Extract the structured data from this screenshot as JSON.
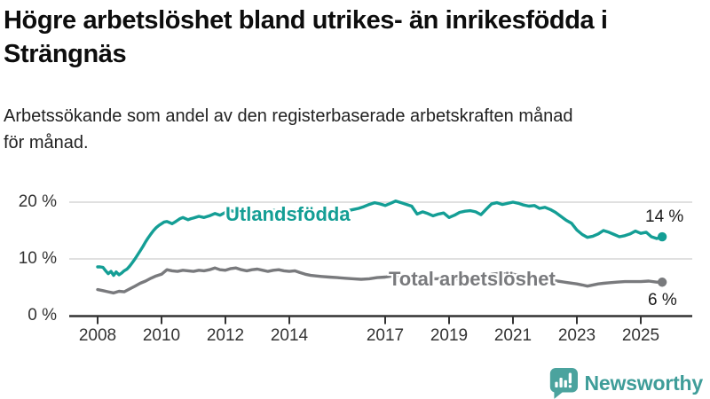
{
  "header": {
    "title": "Högre arbetslöshet bland utrikes- än inrikesfödda i Strängnäs",
    "subtitle": "Arbetssökande som andel av den registerbaserade arbetskraften månad för månad."
  },
  "chart_data": {
    "type": "line",
    "x_axis": {
      "unit": "year",
      "min": 2007.1,
      "max": 2026.6,
      "ticks": [
        2008,
        2010,
        2012,
        2014,
        2017,
        2019,
        2021,
        2023,
        2025
      ]
    },
    "y_axis": {
      "min": 0,
      "max": 22,
      "gridlines": [
        10,
        20
      ],
      "ticks": [
        {
          "value": 0,
          "label": "0 %"
        },
        {
          "value": 10,
          "label": "10 %"
        },
        {
          "value": 20,
          "label": "20 %"
        }
      ]
    },
    "legend_position": "inline-labels-on-lines",
    "series": [
      {
        "name": "Utlandsfödda",
        "color": "#149E95",
        "end_label": "14 %",
        "end_value": 14,
        "points": [
          [
            2008.0,
            8.6
          ],
          [
            2008.08,
            8.6
          ],
          [
            2008.17,
            8.5
          ],
          [
            2008.25,
            7.9
          ],
          [
            2008.33,
            7.4
          ],
          [
            2008.42,
            7.8
          ],
          [
            2008.5,
            7.1
          ],
          [
            2008.58,
            7.7
          ],
          [
            2008.67,
            7.2
          ],
          [
            2008.75,
            7.5
          ],
          [
            2008.83,
            7.9
          ],
          [
            2008.92,
            8.2
          ],
          [
            2009.0,
            8.7
          ],
          [
            2009.08,
            9.3
          ],
          [
            2009.17,
            10.0
          ],
          [
            2009.25,
            10.7
          ],
          [
            2009.33,
            11.4
          ],
          [
            2009.42,
            12.2
          ],
          [
            2009.5,
            13.0
          ],
          [
            2009.58,
            13.7
          ],
          [
            2009.67,
            14.4
          ],
          [
            2009.75,
            15.0
          ],
          [
            2009.83,
            15.5
          ],
          [
            2009.92,
            15.9
          ],
          [
            2010.0,
            16.2
          ],
          [
            2010.08,
            16.5
          ],
          [
            2010.17,
            16.6
          ],
          [
            2010.25,
            16.4
          ],
          [
            2010.33,
            16.2
          ],
          [
            2010.42,
            16.5
          ],
          [
            2010.5,
            16.8
          ],
          [
            2010.58,
            17.1
          ],
          [
            2010.67,
            17.3
          ],
          [
            2010.75,
            17.1
          ],
          [
            2010.83,
            16.9
          ],
          [
            2010.92,
            17.1
          ],
          [
            2011.0,
            17.2
          ],
          [
            2011.17,
            17.5
          ],
          [
            2011.33,
            17.3
          ],
          [
            2011.5,
            17.6
          ],
          [
            2011.67,
            18.0
          ],
          [
            2011.83,
            17.7
          ],
          [
            2012.0,
            18.2
          ],
          [
            2012.17,
            18.5
          ],
          [
            2012.33,
            18.3
          ],
          [
            2012.5,
            18.5
          ],
          [
            2012.67,
            18.2
          ],
          [
            2012.83,
            18.4
          ],
          [
            2013.0,
            18.3
          ],
          [
            2013.17,
            18.1
          ],
          [
            2013.33,
            18.4
          ],
          [
            2013.5,
            18.6
          ],
          [
            2013.67,
            18.4
          ],
          [
            2013.83,
            18.2
          ],
          [
            2014.0,
            18.4
          ],
          [
            2014.17,
            18.6
          ],
          [
            2014.33,
            18.4
          ],
          [
            2014.5,
            18.3
          ],
          [
            2014.67,
            18.5
          ],
          [
            2014.83,
            18.3
          ],
          [
            2015.0,
            18.1
          ],
          [
            2015.17,
            18.3
          ],
          [
            2015.33,
            18.5
          ],
          [
            2015.5,
            18.3
          ],
          [
            2015.67,
            18.4
          ],
          [
            2015.83,
            18.5
          ],
          [
            2016.0,
            18.7
          ],
          [
            2016.17,
            18.9
          ],
          [
            2016.33,
            19.2
          ],
          [
            2016.5,
            19.6
          ],
          [
            2016.67,
            19.9
          ],
          [
            2016.83,
            19.7
          ],
          [
            2017.0,
            19.4
          ],
          [
            2017.17,
            19.8
          ],
          [
            2017.33,
            20.2
          ],
          [
            2017.5,
            19.9
          ],
          [
            2017.67,
            19.6
          ],
          [
            2017.83,
            19.3
          ],
          [
            2018.0,
            17.9
          ],
          [
            2018.17,
            18.3
          ],
          [
            2018.33,
            18.0
          ],
          [
            2018.5,
            17.6
          ],
          [
            2018.67,
            17.9
          ],
          [
            2018.83,
            18.1
          ],
          [
            2019.0,
            17.3
          ],
          [
            2019.17,
            17.7
          ],
          [
            2019.33,
            18.2
          ],
          [
            2019.5,
            18.4
          ],
          [
            2019.67,
            18.5
          ],
          [
            2019.83,
            18.3
          ],
          [
            2020.0,
            17.8
          ],
          [
            2020.17,
            18.8
          ],
          [
            2020.33,
            19.7
          ],
          [
            2020.5,
            19.9
          ],
          [
            2020.67,
            19.6
          ],
          [
            2020.83,
            19.8
          ],
          [
            2021.0,
            20.0
          ],
          [
            2021.17,
            19.8
          ],
          [
            2021.33,
            19.5
          ],
          [
            2021.5,
            19.3
          ],
          [
            2021.67,
            19.4
          ],
          [
            2021.83,
            18.9
          ],
          [
            2022.0,
            19.1
          ],
          [
            2022.17,
            18.7
          ],
          [
            2022.33,
            18.2
          ],
          [
            2022.5,
            17.5
          ],
          [
            2022.67,
            16.8
          ],
          [
            2022.83,
            16.3
          ],
          [
            2023.0,
            15.1
          ],
          [
            2023.17,
            14.3
          ],
          [
            2023.33,
            13.8
          ],
          [
            2023.5,
            14.0
          ],
          [
            2023.67,
            14.4
          ],
          [
            2023.83,
            15.0
          ],
          [
            2024.0,
            14.7
          ],
          [
            2024.17,
            14.3
          ],
          [
            2024.33,
            13.9
          ],
          [
            2024.5,
            14.1
          ],
          [
            2024.67,
            14.4
          ],
          [
            2024.83,
            14.9
          ],
          [
            2025.0,
            14.5
          ],
          [
            2025.17,
            14.7
          ],
          [
            2025.33,
            13.9
          ],
          [
            2025.5,
            13.6
          ],
          [
            2025.67,
            13.9
          ]
        ]
      },
      {
        "name": "Total arbetslöshet",
        "color": "#797A7D",
        "end_label": "6 %",
        "end_value": 6,
        "points": [
          [
            2008.0,
            4.6
          ],
          [
            2008.17,
            4.4
          ],
          [
            2008.33,
            4.2
          ],
          [
            2008.5,
            4.0
          ],
          [
            2008.67,
            4.3
          ],
          [
            2008.83,
            4.2
          ],
          [
            2009.0,
            4.7
          ],
          [
            2009.17,
            5.2
          ],
          [
            2009.33,
            5.7
          ],
          [
            2009.5,
            6.1
          ],
          [
            2009.67,
            6.6
          ],
          [
            2009.83,
            7.0
          ],
          [
            2010.0,
            7.3
          ],
          [
            2010.17,
            8.1
          ],
          [
            2010.33,
            7.9
          ],
          [
            2010.5,
            7.8
          ],
          [
            2010.67,
            8.0
          ],
          [
            2010.83,
            7.9
          ],
          [
            2011.0,
            7.8
          ],
          [
            2011.17,
            8.0
          ],
          [
            2011.33,
            7.9
          ],
          [
            2011.5,
            8.1
          ],
          [
            2011.67,
            8.4
          ],
          [
            2011.83,
            8.1
          ],
          [
            2012.0,
            8.0
          ],
          [
            2012.17,
            8.3
          ],
          [
            2012.33,
            8.4
          ],
          [
            2012.5,
            8.1
          ],
          [
            2012.67,
            7.9
          ],
          [
            2012.83,
            8.1
          ],
          [
            2013.0,
            8.2
          ],
          [
            2013.17,
            8.0
          ],
          [
            2013.33,
            7.8
          ],
          [
            2013.5,
            8.0
          ],
          [
            2013.67,
            8.1
          ],
          [
            2013.83,
            7.9
          ],
          [
            2014.0,
            7.8
          ],
          [
            2014.17,
            7.9
          ],
          [
            2014.33,
            7.6
          ],
          [
            2014.5,
            7.3
          ],
          [
            2014.67,
            7.1
          ],
          [
            2014.83,
            7.0
          ],
          [
            2015.0,
            6.9
          ],
          [
            2015.25,
            6.8
          ],
          [
            2015.5,
            6.7
          ],
          [
            2015.75,
            6.6
          ],
          [
            2016.0,
            6.5
          ],
          [
            2016.25,
            6.4
          ],
          [
            2016.5,
            6.5
          ],
          [
            2016.75,
            6.7
          ],
          [
            2017.0,
            6.8
          ],
          [
            2017.25,
            7.0
          ],
          [
            2017.5,
            6.9
          ],
          [
            2017.75,
            6.8
          ],
          [
            2018.0,
            6.7
          ],
          [
            2018.25,
            6.6
          ],
          [
            2018.5,
            6.5
          ],
          [
            2018.75,
            6.5
          ],
          [
            2019.0,
            6.4
          ],
          [
            2019.25,
            6.5
          ],
          [
            2019.5,
            6.6
          ],
          [
            2019.75,
            6.5
          ],
          [
            2020.0,
            6.5
          ],
          [
            2020.17,
            6.9
          ],
          [
            2020.33,
            7.3
          ],
          [
            2020.5,
            7.4
          ],
          [
            2020.67,
            7.4
          ],
          [
            2020.83,
            7.3
          ],
          [
            2021.0,
            7.3
          ],
          [
            2021.25,
            7.1
          ],
          [
            2021.5,
            6.9
          ],
          [
            2021.75,
            6.7
          ],
          [
            2022.0,
            6.5
          ],
          [
            2022.25,
            6.2
          ],
          [
            2022.5,
            6.0
          ],
          [
            2022.75,
            5.8
          ],
          [
            2023.0,
            5.6
          ],
          [
            2023.17,
            5.4
          ],
          [
            2023.33,
            5.2
          ],
          [
            2023.5,
            5.4
          ],
          [
            2023.67,
            5.6
          ],
          [
            2023.83,
            5.7
          ],
          [
            2024.0,
            5.8
          ],
          [
            2024.25,
            5.9
          ],
          [
            2024.5,
            6.0
          ],
          [
            2024.75,
            6.0
          ],
          [
            2025.0,
            6.0
          ],
          [
            2025.25,
            6.1
          ],
          [
            2025.5,
            5.9
          ],
          [
            2025.67,
            5.9
          ]
        ]
      }
    ]
  },
  "branding": {
    "name": "Newsworthy",
    "icon": "speech-bubble-bar-chart-exclamation",
    "text_color": "#3F9D99",
    "icon_color": "#4BA39E"
  },
  "style": {
    "grid_color": "#E0E0E0",
    "axis_color": "#333333",
    "tick_text_color": "#333333"
  }
}
